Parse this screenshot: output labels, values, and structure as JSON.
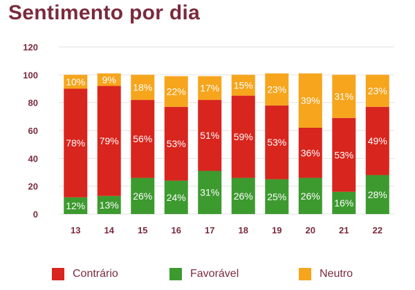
{
  "chart_data": {
    "type": "bar",
    "stacked": true,
    "title": "Sentimento por dia",
    "categories": [
      "13",
      "14",
      "15",
      "16",
      "17",
      "18",
      "19",
      "20",
      "21",
      "22"
    ],
    "ylim": [
      0,
      120
    ],
    "yticks": [
      "0",
      "20",
      "40",
      "60",
      "80",
      "100",
      "120"
    ],
    "grid": true,
    "legend_position": "bottom",
    "series": [
      {
        "name": "Favorável",
        "color": "#3d9a2f",
        "values": [
          12,
          13,
          26,
          24,
          31,
          26,
          25,
          26,
          16,
          28
        ],
        "labels": [
          "12%",
          "13%",
          "26%",
          "24%",
          "31%",
          "26%",
          "25%",
          "26%",
          "16%",
          "28%"
        ]
      },
      {
        "name": "Contrário",
        "color": "#d8251d",
        "values": [
          78,
          79,
          56,
          53,
          51,
          59,
          53,
          36,
          53,
          49
        ],
        "labels": [
          "78%",
          "79%",
          "56%",
          "53%",
          "51%",
          "59%",
          "53%",
          "36%",
          "53%",
          "49%"
        ]
      },
      {
        "name": "Neutro",
        "color": "#f6a51c",
        "values": [
          10,
          9,
          18,
          22,
          17,
          15,
          23,
          39,
          31,
          23
        ],
        "labels": [
          "10%",
          "9%",
          "18%",
          "22%",
          "17%",
          "15%",
          "23%",
          "39%",
          "31%",
          "23%"
        ]
      }
    ]
  },
  "legend": [
    {
      "label": "Contrário",
      "color": "#d8251d"
    },
    {
      "label": "Favorável",
      "color": "#3d9a2f"
    },
    {
      "label": "Neutro",
      "color": "#f6a51c"
    }
  ]
}
